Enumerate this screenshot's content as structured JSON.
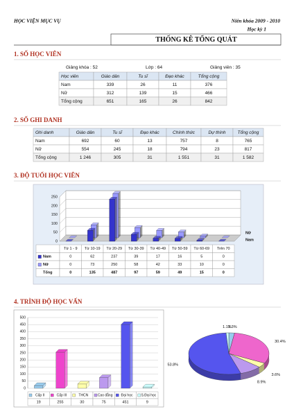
{
  "header": {
    "school": "HỌC VIỆN MỤC VỤ",
    "year": "Niên khóa 2009 - 2010",
    "term": "Học kỳ 1"
  },
  "title": "THỐNG KÊ TỔNG QUÁT",
  "students": {
    "heading": "1. SỐ HỌC VIÊN",
    "stats": [
      {
        "label": "Giảng khóa :",
        "value": 52
      },
      {
        "label": "Lớp :",
        "value": 64
      },
      {
        "label": "Giảng viên :",
        "value": 35
      }
    ],
    "table": {
      "columns": [
        "Học viên",
        "Giáo dân",
        "Tu sĩ",
        "Đạo khác",
        "Tổng cộng"
      ],
      "rows": [
        [
          "Nam",
          339,
          26,
          11,
          376
        ],
        [
          "Nữ",
          312,
          139,
          15,
          466
        ],
        [
          "Tổng cộng",
          651,
          165,
          26,
          842
        ]
      ]
    }
  },
  "enrollment": {
    "heading": "2. SỐ GHI DANH",
    "table": {
      "columns": [
        "Ghi danh",
        "Giáo dân",
        "Tu sĩ",
        "Đạo khác",
        "Chính thức",
        "Dự thính",
        "Tổng cộng"
      ],
      "rows": [
        [
          "Nam",
          692,
          60,
          13,
          757,
          8,
          765
        ],
        [
          "Nữ",
          554,
          245,
          18,
          794,
          23,
          817
        ],
        [
          "Tổng cộng",
          "1 246",
          305,
          31,
          "1 551",
          31,
          "1 582"
        ]
      ]
    }
  },
  "age": {
    "heading": "3. ĐỘ TUỔI HỌC VIÊN"
  },
  "education": {
    "heading": "4. TRÌNH ĐỘ HỌC VẤN"
  },
  "chart_data": [
    {
      "type": "bar3d",
      "categories": [
        "Từ 1 - 9",
        "Từ 10-19",
        "Từ 20-29",
        "Từ 30-39",
        "Từ 40-49",
        "Từ 50-59",
        "Từ 60-69",
        "Trên 70"
      ],
      "series": [
        {
          "name": "Nam",
          "color": "#3333cc",
          "values": [
            0,
            62,
            237,
            39,
            17,
            16,
            5,
            0
          ]
        },
        {
          "name": "Nữ",
          "color": "#9999ff",
          "values": [
            0,
            73,
            250,
            58,
            42,
            33,
            10,
            0
          ]
        }
      ],
      "total": {
        "name": "Tổng",
        "values": [
          0,
          135,
          487,
          97,
          59,
          49,
          15,
          0
        ]
      },
      "ylim": [
        0,
        250
      ],
      "yticks": [
        0,
        50,
        100,
        150,
        200,
        250
      ],
      "grid": true
    },
    {
      "type": "bar",
      "categories": [
        "Cấp II",
        "Cấp III",
        "THCN",
        "Cao đẳng",
        "Đại học",
        "S.Đại học"
      ],
      "values": [
        19,
        255,
        30,
        75,
        451,
        9
      ],
      "colors": [
        "#99ccee",
        "#ee44cc",
        "#ffffaa",
        "#bb99ee",
        "#5555ee",
        "#ccffff"
      ],
      "ylim": [
        0,
        500
      ],
      "yticks": [
        0,
        50,
        100,
        150,
        200,
        250,
        300,
        350,
        400,
        450,
        500
      ],
      "grid": true
    },
    {
      "type": "pie",
      "categories": [
        "Cấp II",
        "Cấp III",
        "THCN",
        "Cao đẳng",
        "Đại học",
        "S.Đại học"
      ],
      "values": [
        2.3,
        30.4,
        3.6,
        8.9,
        53.8,
        1.1
      ],
      "value_labels": [
        "2.3%",
        "30.4%",
        "3.6%",
        "8.9%",
        "53.8%",
        "1.1%"
      ],
      "colors": [
        "#99ccee",
        "#ee66cc",
        "#ffffaa",
        "#bb99ee",
        "#5555ee",
        "#ccffff"
      ]
    }
  ]
}
